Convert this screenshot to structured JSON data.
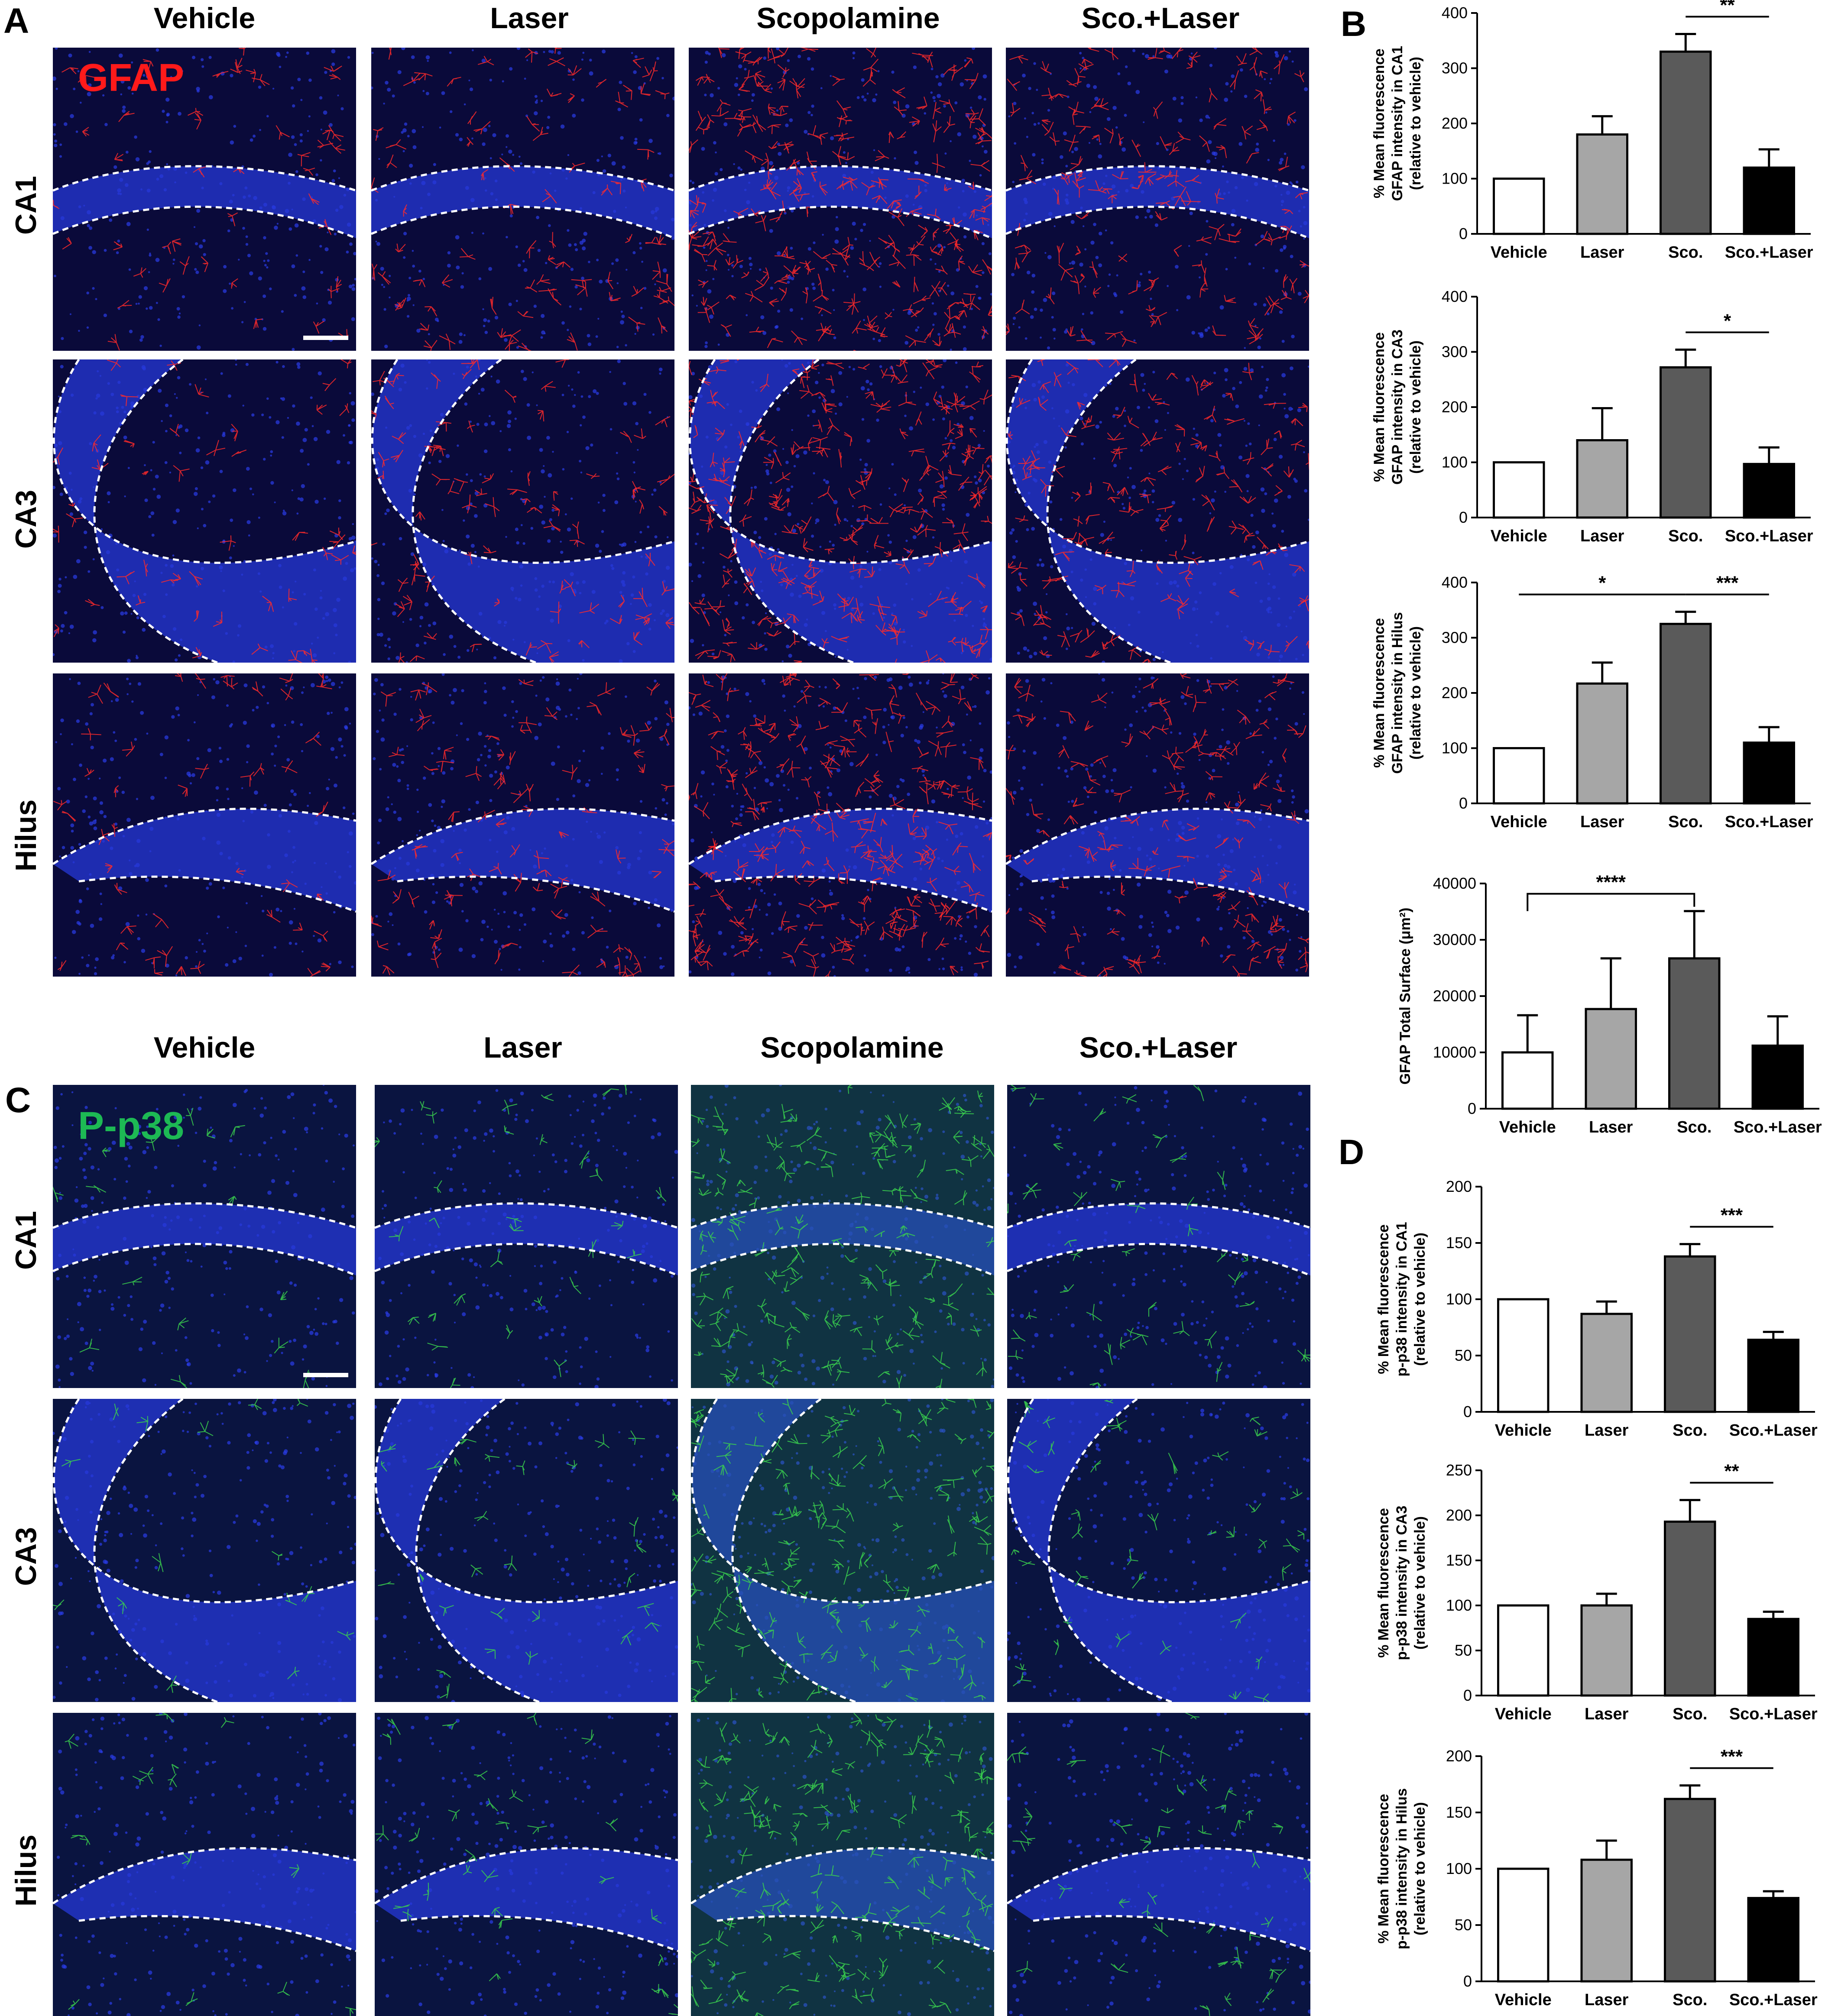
{
  "figure": {
    "panel_letters": [
      "A",
      "B",
      "C",
      "D"
    ],
    "columns": [
      "Vehicle",
      "Laser",
      "Scopolamine",
      "Sco.+Laser"
    ],
    "rows": [
      "CA1",
      "CA3",
      "Hilus"
    ],
    "marker_A": "GFAP",
    "marker_C": "P-p38",
    "colors": {
      "gfap_marker": "#ff1a1a",
      "pp38_marker": "#1db954",
      "dapi": "#1c2fd6",
      "gfap_signal": "#ff2020",
      "pp38_signal": "#35c84a"
    }
  },
  "chart_data": [
    {
      "type": "bar",
      "panel": "B",
      "ylabel": [
        "% Mean fluorescence",
        "GFAP intensity in CA1",
        "(relative to vehicle)"
      ],
      "categories": [
        "Vehicle",
        "Laser",
        "Sco.",
        "Sco.+Laser"
      ],
      "values": [
        100,
        180,
        330,
        120
      ],
      "errors": [
        0,
        33,
        32,
        33
      ],
      "ylim": [
        0,
        400
      ],
      "yticks": [
        "0",
        "100",
        "200",
        "300",
        "400"
      ],
      "colors": [
        "#ffffff",
        "#a6a6a6",
        "#5a5a5a",
        "#000000"
      ],
      "significance": [
        {
          "from": 2,
          "to": 3,
          "label": "**"
        }
      ]
    },
    {
      "type": "bar",
      "panel": "B",
      "ylabel": [
        "% Mean fluorescence",
        "GFAP intensity in CA3",
        "(relative to vehicle)"
      ],
      "categories": [
        "Vehicle",
        "Laser",
        "Sco.",
        "Sco.+Laser"
      ],
      "values": [
        100,
        140,
        272,
        97
      ],
      "errors": [
        0,
        58,
        32,
        30
      ],
      "ylim": [
        0,
        400
      ],
      "yticks": [
        "0",
        "100",
        "200",
        "300",
        "400"
      ],
      "colors": [
        "#ffffff",
        "#a6a6a6",
        "#5a5a5a",
        "#000000"
      ],
      "significance": [
        {
          "from": 2,
          "to": 3,
          "label": "*"
        }
      ]
    },
    {
      "type": "bar",
      "panel": "B",
      "ylabel": [
        "% Mean fluorescence",
        "GFAP intensity in Hilus",
        "(relative to vehicle)"
      ],
      "categories": [
        "Vehicle",
        "Laser",
        "Sco.",
        "Sco.+Laser"
      ],
      "values": [
        100,
        217,
        325,
        110
      ],
      "errors": [
        0,
        38,
        22,
        28
      ],
      "ylim": [
        0,
        400
      ],
      "yticks": [
        "0",
        "100",
        "200",
        "300",
        "400"
      ],
      "colors": [
        "#ffffff",
        "#a6a6a6",
        "#5a5a5a",
        "#000000"
      ],
      "significance": [
        {
          "from": 0,
          "to": 2,
          "label": "*"
        },
        {
          "from": 2,
          "to": 3,
          "label": "***"
        }
      ]
    },
    {
      "type": "bar",
      "panel": "B",
      "ylabel": [
        "GFAP Total Surface (μm²)"
      ],
      "categories": [
        "Vehicle",
        "Laser",
        "Sco.",
        "Sco.+Laser"
      ],
      "values": [
        10000,
        17700,
        26700,
        11200
      ],
      "errors": [
        6600,
        9000,
        8400,
        5200
      ],
      "ylim": [
        0,
        40000
      ],
      "yticks": [
        "0",
        "10000",
        "20000",
        "30000",
        "40000"
      ],
      "colors": [
        "#ffffff",
        "#a6a6a6",
        "#5a5a5a",
        "#000000"
      ],
      "significance": [
        {
          "from": 0,
          "to": 2,
          "label": "****",
          "bracket": true
        }
      ]
    },
    {
      "type": "bar",
      "panel": "D",
      "ylabel": [
        "% Mean fluorescence",
        "p-p38 intensity in CA1",
        "(relative to vehicle)"
      ],
      "categories": [
        "Vehicle",
        "Laser",
        "Sco.",
        "Sco.+Laser"
      ],
      "values": [
        100,
        87,
        138,
        64
      ],
      "errors": [
        0,
        11,
        11,
        7
      ],
      "ylim": [
        0,
        200
      ],
      "yticks": [
        "0",
        "50",
        "100",
        "150",
        "200"
      ],
      "colors": [
        "#ffffff",
        "#a6a6a6",
        "#5a5a5a",
        "#000000"
      ],
      "significance": [
        {
          "from": 2,
          "to": 3,
          "label": "***"
        }
      ]
    },
    {
      "type": "bar",
      "panel": "D",
      "ylabel": [
        "% Mean fluorescence",
        "p-p38 intensity in CA3",
        "(relative to vehicle)"
      ],
      "categories": [
        "Vehicle",
        "Laser",
        "Sco.",
        "Sco.+Laser"
      ],
      "values": [
        100,
        100,
        193,
        85
      ],
      "errors": [
        0,
        13,
        24,
        8
      ],
      "ylim": [
        0,
        250
      ],
      "yticks": [
        "0",
        "50",
        "100",
        "150",
        "200",
        "250"
      ],
      "colors": [
        "#ffffff",
        "#a6a6a6",
        "#5a5a5a",
        "#000000"
      ],
      "significance": [
        {
          "from": 2,
          "to": 3,
          "label": "**"
        }
      ]
    },
    {
      "type": "bar",
      "panel": "D",
      "ylabel": [
        "% Mean fluorescence",
        "p-p38 intensity in Hilus",
        "(relative to vehicle)"
      ],
      "categories": [
        "Vehicle",
        "Laser",
        "Sco.",
        "Sco.+Laser"
      ],
      "values": [
        100,
        108,
        162,
        74
      ],
      "errors": [
        0,
        17,
        12,
        6
      ],
      "ylim": [
        0,
        200
      ],
      "yticks": [
        "0",
        "50",
        "100",
        "150",
        "200"
      ],
      "colors": [
        "#ffffff",
        "#a6a6a6",
        "#5a5a5a",
        "#000000"
      ],
      "significance": [
        {
          "from": 2,
          "to": 3,
          "label": "***"
        }
      ]
    }
  ]
}
